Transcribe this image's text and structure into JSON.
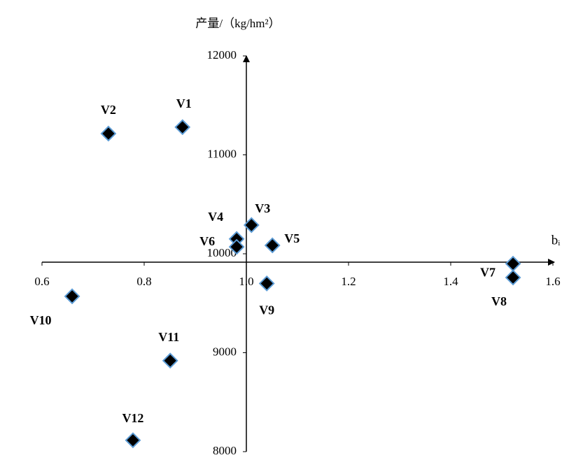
{
  "chart_data": {
    "type": "scatter",
    "x_label": "bᵢ",
    "y_label": "产量/（kg/hm²）",
    "xlim": [
      0.6,
      1.6
    ],
    "ylim": [
      8000,
      12000
    ],
    "xticks": [
      0.6,
      0.8,
      {
        "value": 1,
        "label": "1.0"
      },
      1.2,
      1.4,
      1.6
    ],
    "yticks": [
      8000,
      9000,
      10000,
      11000,
      12000
    ],
    "color": "#000000",
    "edge_color": "#5b9bd5",
    "labels": [
      "V1",
      "V2",
      "V3",
      "V4",
      "V5",
      "V6",
      "V7",
      "V8",
      "V9",
      "V10",
      "V11",
      "V12"
    ],
    "x": [
      0.875,
      0.73,
      1.01,
      0.981,
      1.051,
      0.981,
      1.522,
      1.522,
      1.04,
      0.659,
      0.851,
      0.778
    ],
    "y": [
      11280,
      11215,
      10290,
      10150,
      10085,
      10070,
      9900,
      9760,
      9700,
      9570,
      8920,
      8115
    ]
  }
}
